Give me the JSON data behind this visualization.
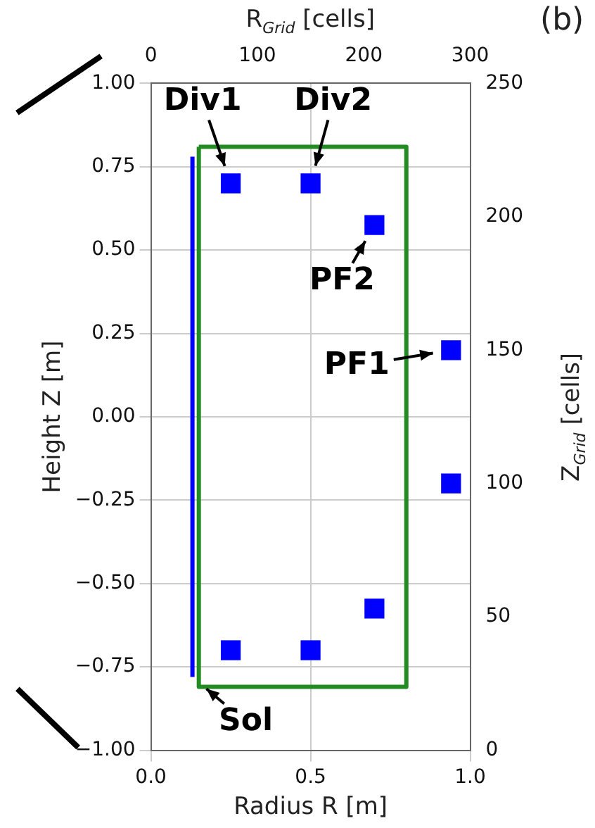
{
  "chart_data": {
    "type": "scatter",
    "title": "(b)",
    "xlabel": "Radius R [m]",
    "ylabel": "Height Z [m]",
    "x2label": "R$_{Grid}$ [cells]",
    "y2label": "Z$_{Grid}$ [cells]",
    "xlim": [
      0,
      1
    ],
    "xticks": [
      {
        "value": 0,
        "label": "0.0"
      },
      {
        "value": 0.5,
        "label": "0.5"
      },
      {
        "value": 1,
        "label": "1.0"
      }
    ],
    "ylim": [
      -1,
      1
    ],
    "yticks": [
      {
        "value": -1,
        "label": "−1.00"
      },
      {
        "value": -0.75,
        "label": "−0.75"
      },
      {
        "value": -0.5,
        "label": "−0.50"
      },
      {
        "value": -0.25,
        "label": "−0.25"
      },
      {
        "value": 0,
        "label": "0.00"
      },
      {
        "value": 0.25,
        "label": "0.25"
      },
      {
        "value": 0.5,
        "label": "0.50"
      },
      {
        "value": 0.75,
        "label": "0.75"
      },
      {
        "value": 1,
        "label": "1.00"
      }
    ],
    "x2lim": [
      0,
      300
    ],
    "x2ticks": [
      0,
      100,
      200,
      300
    ],
    "y2lim": [
      0,
      250
    ],
    "y2ticks": [
      0,
      50,
      100,
      150,
      200,
      250
    ],
    "grid": true,
    "legend": false,
    "marker": "square",
    "series": [
      {
        "color": "#0000ff",
        "x": [
          0.25,
          0.5,
          0.7,
          0.94,
          0.94,
          0.7,
          0.5,
          0.25
        ],
        "values": [
          0.7,
          0.7,
          0.575,
          0.2,
          -0.2,
          -0.575,
          -0.7,
          -0.7
        ]
      },
      {
        "type": "line",
        "color": "#0000ff",
        "marker": "none",
        "x": [
          0.13,
          0.13
        ],
        "values": [
          -0.78,
          0.78
        ]
      },
      {
        "type": "line",
        "color": "#228b22",
        "marker": "none",
        "x": [
          0.15,
          0.8,
          0.8
        ],
        "values": [
          0.81,
          0.81,
          -0.81
        ]
      },
      {
        "type": "line",
        "color": "#228b22",
        "marker": "none",
        "x": [
          0.8,
          0.15,
          0.15
        ],
        "values": [
          -0.81,
          -0.81,
          0.81
        ]
      }
    ],
    "annotations": [
      {
        "text": "Div1",
        "x": 0.25,
        "y": 0.7
      },
      {
        "text": "Div2",
        "x": 0.5,
        "y": 0.7
      },
      {
        "text": "PF2",
        "x": 0.7,
        "y": 0.575
      },
      {
        "text": "PF1",
        "x": 0.94,
        "y": 0.2
      },
      {
        "text": "Sol",
        "x": 0.13,
        "y": -0.78
      }
    ]
  }
}
